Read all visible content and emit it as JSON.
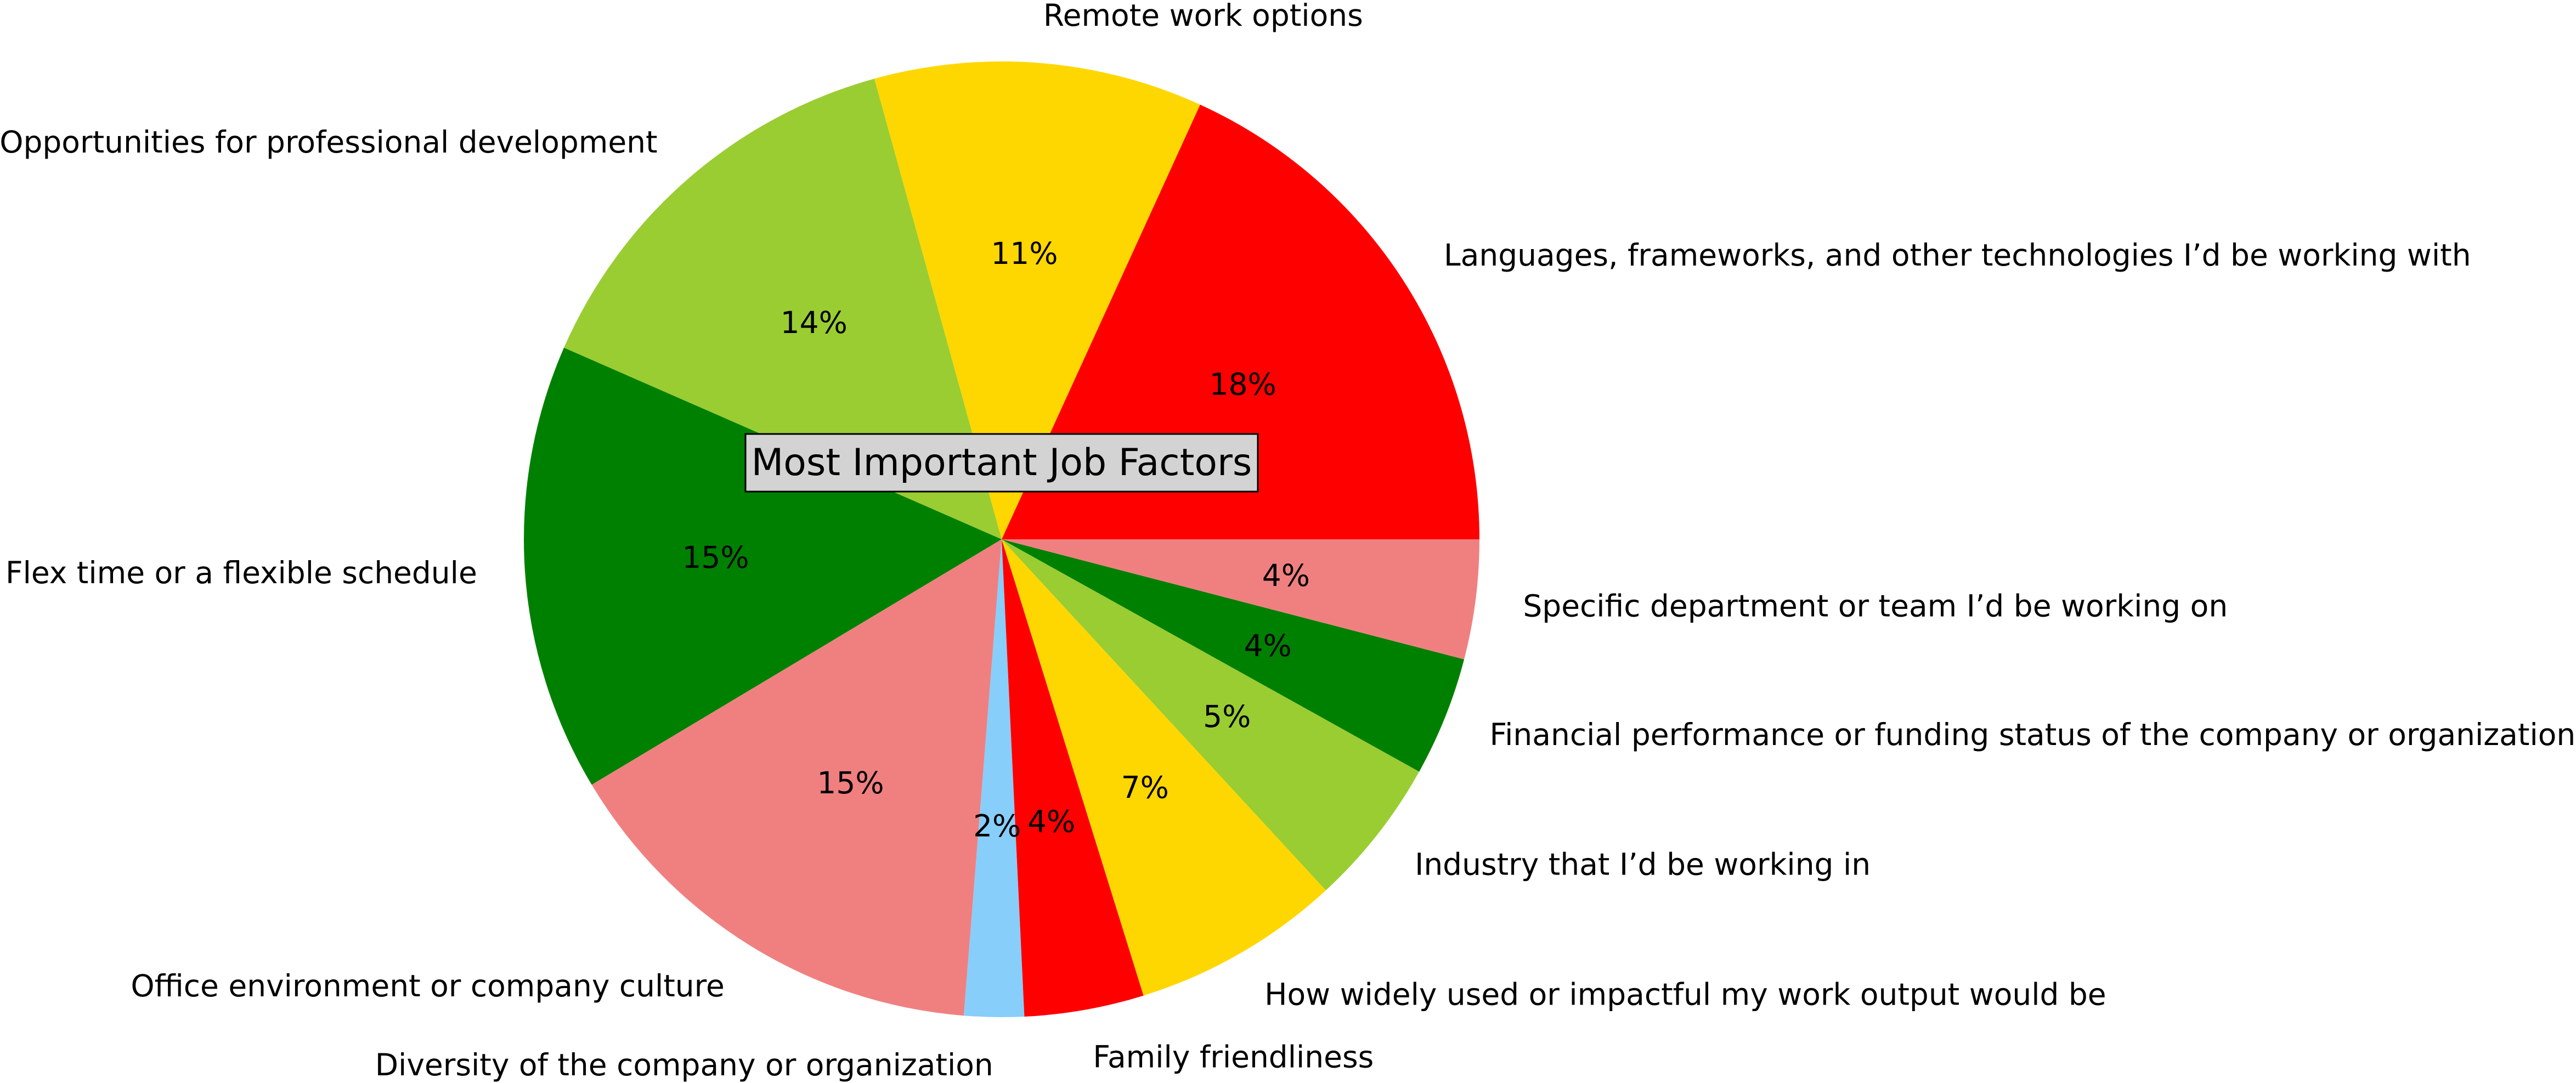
{
  "chart_data": {
    "type": "pie",
    "title": "Most Important Job Factors",
    "start_angle_deg": 0,
    "direction": "counterclockwise",
    "legend": "none",
    "slices": [
      {
        "label": "Languages, frameworks, and other technologies I’d be working with",
        "value": 18,
        "pct_label": "18%",
        "color": "#ff0000"
      },
      {
        "label": "Remote work options",
        "value": 11,
        "pct_label": "11%",
        "color": "#ffd700"
      },
      {
        "label": "Opportunities for professional development",
        "value": 14,
        "pct_label": "14%",
        "color": "#9acd32"
      },
      {
        "label": "Flex time or a flexible schedule",
        "value": 15,
        "pct_label": "15%",
        "color": "#008000"
      },
      {
        "label": "Office environment or company culture",
        "value": 15,
        "pct_label": "15%",
        "color": "#f08080"
      },
      {
        "label": "Diversity of the company or organization",
        "value": 2,
        "pct_label": "2%",
        "color": "#87cefa"
      },
      {
        "label": "Family friendliness",
        "value": 4,
        "pct_label": "4%",
        "color": "#ff0000"
      },
      {
        "label": "How widely used or impactful my work output would be",
        "value": 7,
        "pct_label": "7%",
        "color": "#ffd700"
      },
      {
        "label": "Industry that I’d be working in",
        "value": 5,
        "pct_label": "5%",
        "color": "#9acd32"
      },
      {
        "label": "Financial performance or funding status of the company or organization",
        "value": 4,
        "pct_label": "4%",
        "color": "#008000"
      },
      {
        "label": "Specific department or team I’d be working on",
        "value": 4,
        "pct_label": "4%",
        "color": "#f08080"
      }
    ]
  }
}
